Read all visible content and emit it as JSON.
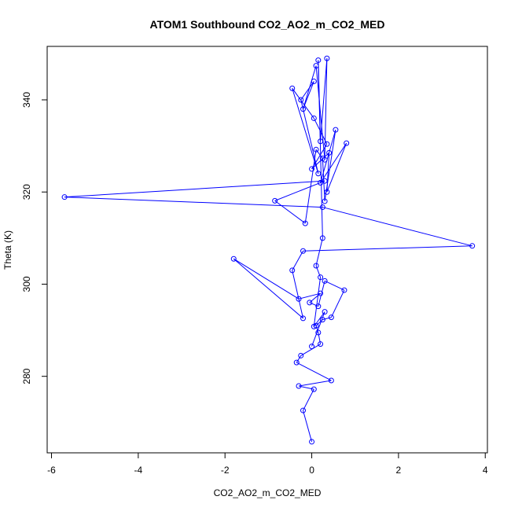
{
  "chart_data": {
    "type": "line",
    "title": "ATOM1 Southbound CO2_AO2_m_CO2_MED",
    "xlabel": "CO2_AO2_m_CO2_MED",
    "ylabel": "Theta (K)",
    "xlim": [
      -6.1,
      4.05
    ],
    "ylim": [
      263.4,
      351.6
    ],
    "x_ticks": [
      -6,
      -4,
      -2,
      0,
      2,
      4
    ],
    "y_ticks": [
      280,
      300,
      320,
      340
    ],
    "grid": false,
    "legend": "none",
    "marker": "open-circle",
    "colors": {
      "series": "#0000ff",
      "axes": "#000000"
    },
    "series": [
      {
        "points": [
          [
            0.0,
            265.8
          ],
          [
            -0.2,
            272.6
          ],
          [
            0.05,
            277.2
          ],
          [
            -0.3,
            277.9
          ],
          [
            0.45,
            279.1
          ],
          [
            -0.35,
            283.0
          ],
          [
            -0.25,
            284.5
          ],
          [
            0.2,
            287.0
          ],
          [
            0.15,
            289.5
          ],
          [
            0.1,
            291.0
          ],
          [
            0.25,
            292.3
          ],
          [
            0.45,
            292.8
          ],
          [
            0.75,
            298.7
          ],
          [
            0.3,
            300.7
          ],
          [
            0.15,
            295.2
          ],
          [
            -0.05,
            296.0
          ],
          [
            0.2,
            298.0
          ],
          [
            -0.3,
            296.8
          ],
          [
            -1.8,
            305.5
          ],
          [
            -0.2,
            292.6
          ],
          [
            -0.45,
            303.0
          ],
          [
            -0.2,
            307.2
          ],
          [
            3.7,
            308.3
          ],
          [
            0.25,
            316.7
          ],
          [
            -5.7,
            318.9
          ],
          [
            0.3,
            322.4
          ],
          [
            -0.85,
            318.1
          ],
          [
            -0.15,
            313.2
          ],
          [
            0.1,
            329.2
          ],
          [
            0.25,
            327.3
          ],
          [
            0.3,
            318.0
          ],
          [
            0.55,
            333.5
          ],
          [
            0.2,
            322.0
          ],
          [
            0.8,
            330.6
          ],
          [
            0.35,
            320.0
          ],
          [
            0.4,
            328.5
          ],
          [
            0.0,
            325.0
          ],
          [
            0.35,
            330.4
          ],
          [
            0.05,
            336.0
          ],
          [
            -0.45,
            342.5
          ],
          [
            0.15,
            324.0
          ],
          [
            -0.25,
            340.0
          ],
          [
            0.05,
            344.0
          ],
          [
            -0.2,
            338.0
          ],
          [
            0.1,
            347.4
          ],
          [
            0.3,
            327.0
          ],
          [
            0.35,
            349.0
          ],
          [
            0.2,
            331.0
          ],
          [
            0.15,
            348.6
          ],
          [
            0.25,
            310.0
          ],
          [
            0.1,
            304.0
          ],
          [
            0.2,
            301.5
          ],
          [
            0.05,
            290.8
          ],
          [
            0.3,
            294.0
          ],
          [
            0.0,
            286.5
          ]
        ]
      }
    ]
  }
}
